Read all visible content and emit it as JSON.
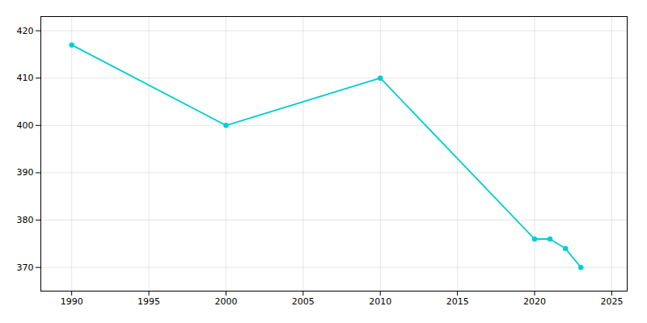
{
  "chart_data": {
    "type": "line",
    "x": [
      1990,
      2000,
      2010,
      2020,
      2021,
      2022,
      2023
    ],
    "values": [
      417,
      400,
      410,
      376,
      376,
      374,
      370
    ],
    "color": "#00CED1",
    "marker": "circle",
    "xlim": [
      1988,
      2026
    ],
    "ylim": [
      365,
      423
    ],
    "xticks": [
      1990,
      1995,
      2000,
      2005,
      2010,
      2015,
      2020,
      2025
    ],
    "yticks": [
      370,
      380,
      390,
      400,
      410,
      420
    ],
    "grid": true
  }
}
